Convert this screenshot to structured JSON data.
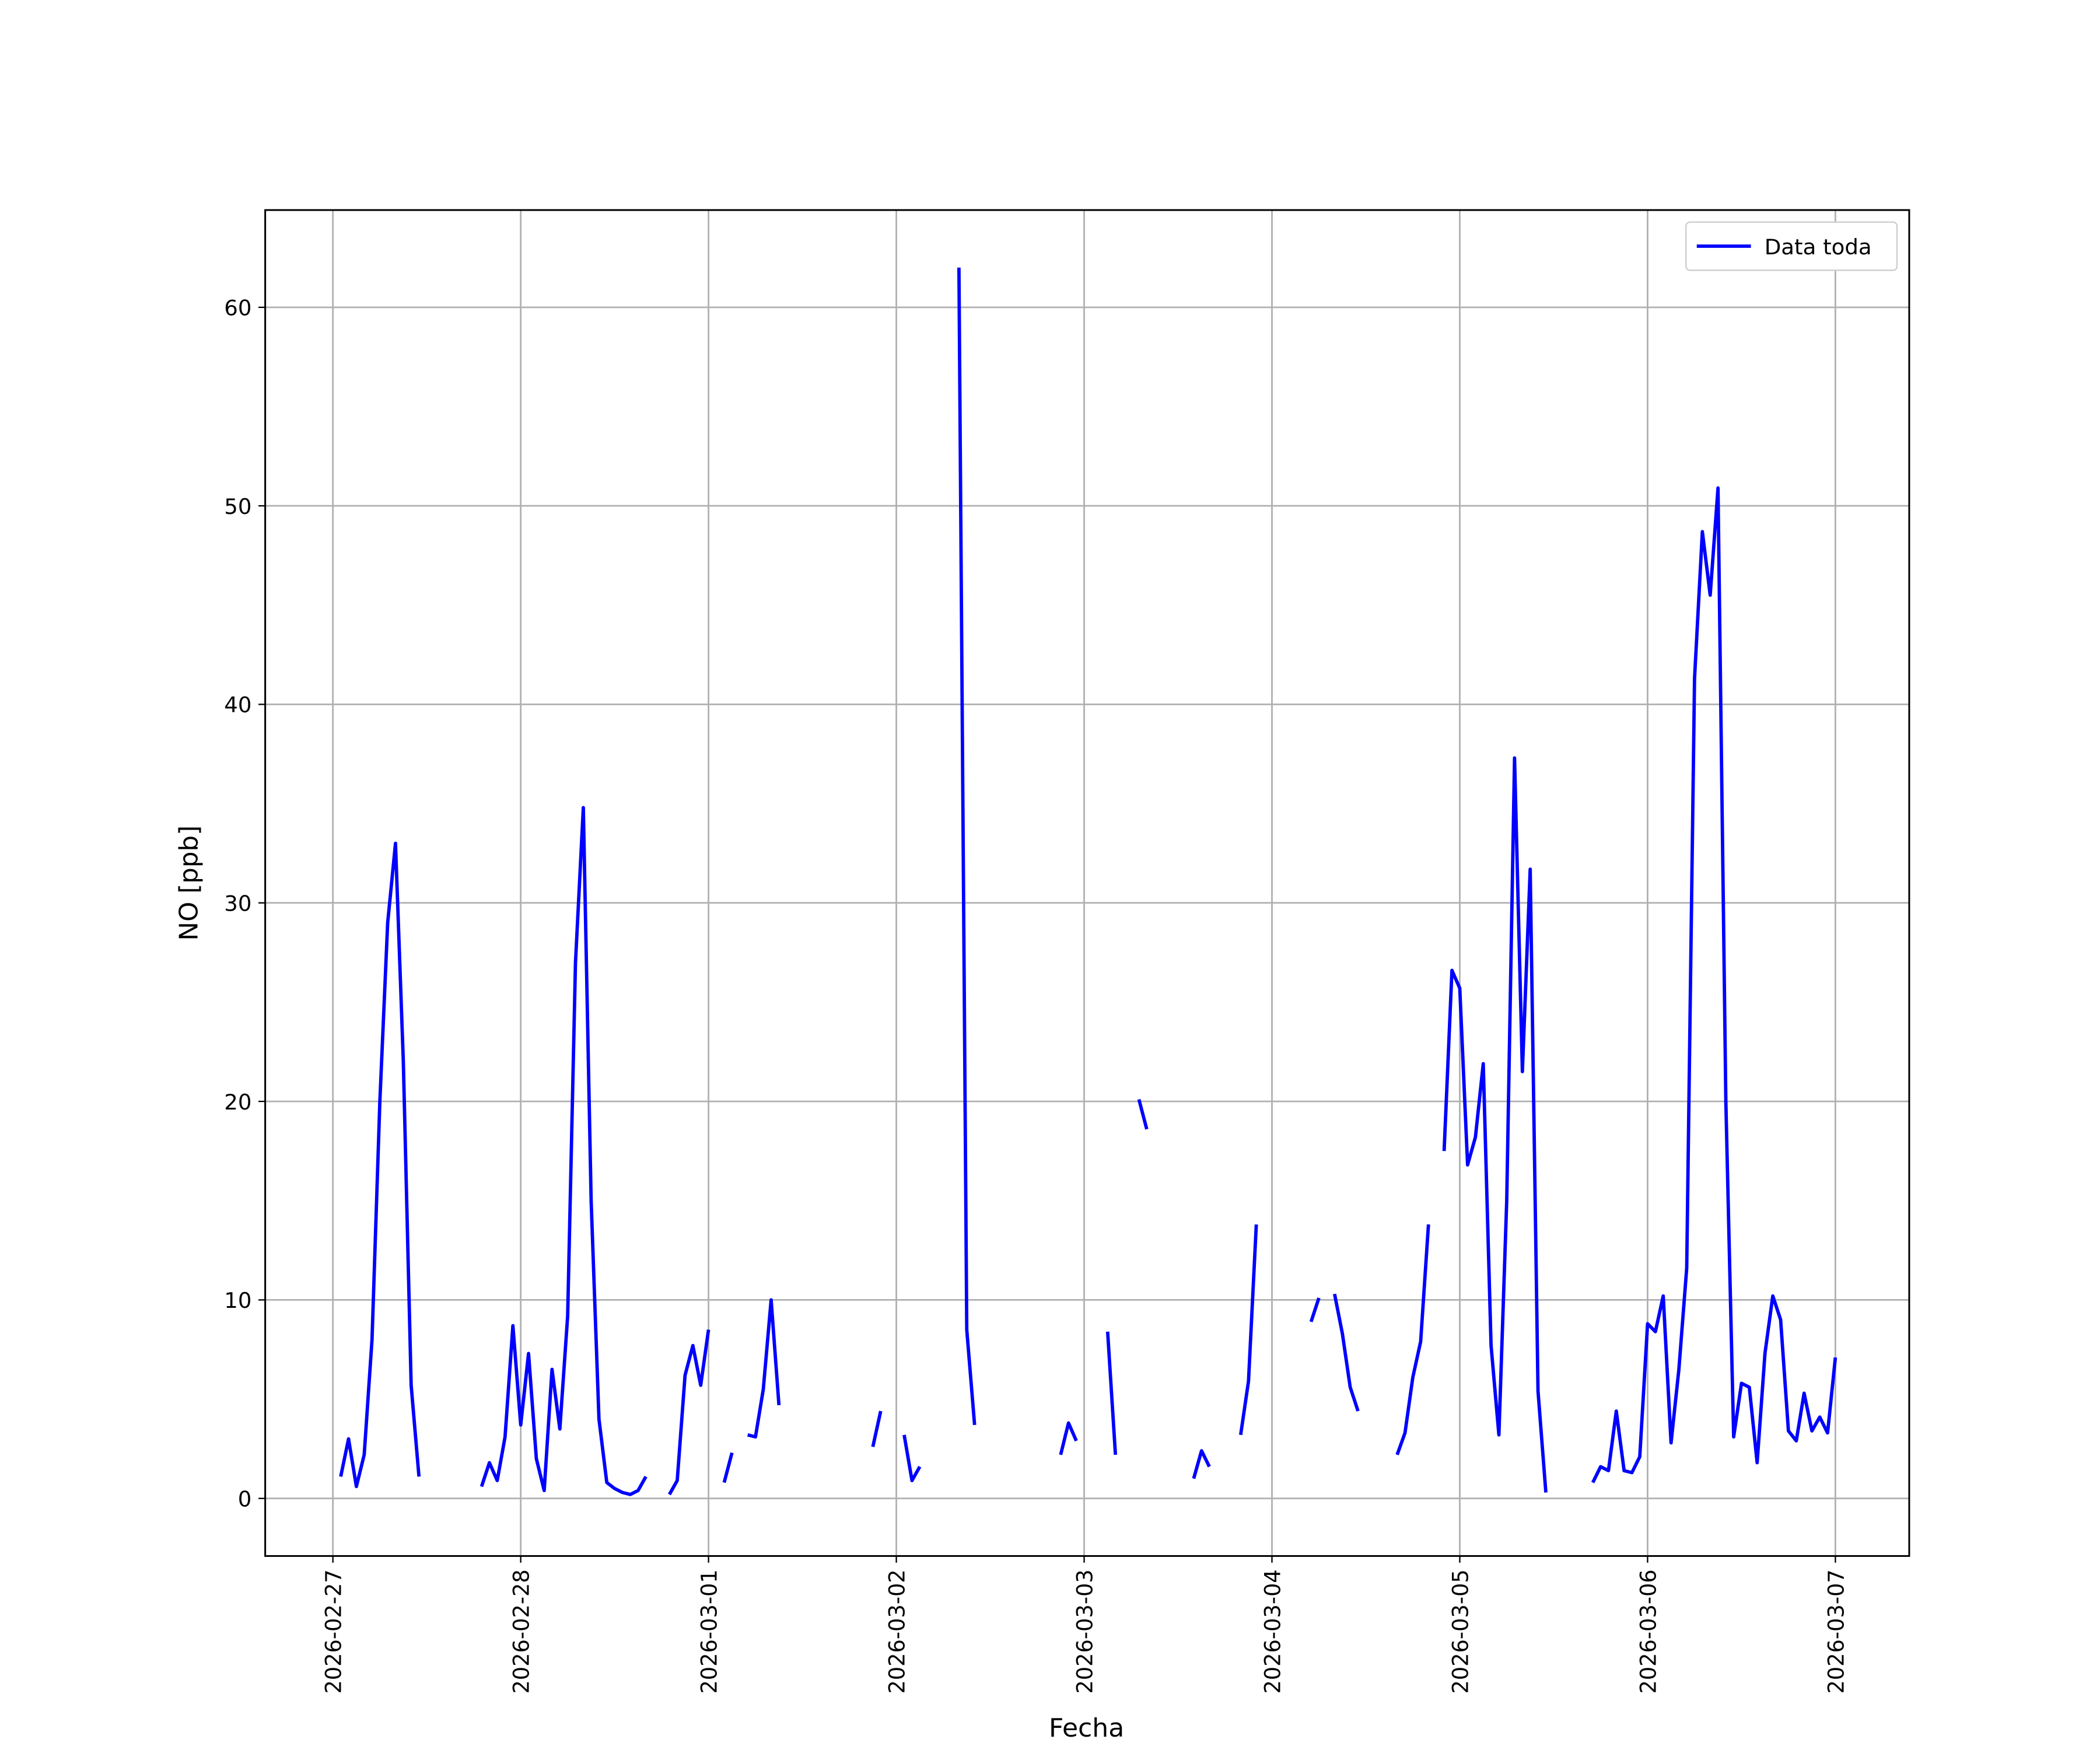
{
  "chart_data": {
    "type": "line",
    "xlabel": "Fecha",
    "ylabel": "NO [ppb]",
    "grid": true,
    "legend": "upper right",
    "xlim": [
      "2026-02-26T15:21",
      "2026-03-07T09:26"
    ],
    "xticks": [
      "2026-02-27",
      "2026-02-28",
      "2026-03-01",
      "2026-03-02",
      "2026-03-03",
      "2026-03-04",
      "2026-03-05",
      "2026-03-06",
      "2026-03-07"
    ],
    "ylim": [
      -2.9,
      64.9
    ],
    "yticks": [
      0,
      10,
      20,
      30,
      40,
      50,
      60
    ],
    "series": [
      {
        "name": "Data toda",
        "color": "#0000ff",
        "x": [
          "2026-02-27T01:00",
          "2026-02-27T02:00",
          "2026-02-27T03:00",
          "2026-02-27T04:00",
          "2026-02-27T05:00",
          "2026-02-27T06:00",
          "2026-02-27T07:00",
          "2026-02-27T08:00",
          "2026-02-27T09:00",
          "2026-02-27T10:00",
          "2026-02-27T11:00",
          "2026-02-27T12:00",
          "2026-02-27T19:00",
          "2026-02-27T20:00",
          "2026-02-27T21:00",
          "2026-02-27T22:00",
          "2026-02-27T23:00",
          "2026-02-28T00:00",
          "2026-02-28T01:00",
          "2026-02-28T02:00",
          "2026-02-28T03:00",
          "2026-02-28T04:00",
          "2026-02-28T05:00",
          "2026-02-28T06:00",
          "2026-02-28T07:00",
          "2026-02-28T08:00",
          "2026-02-28T09:00",
          "2026-02-28T10:00",
          "2026-02-28T11:00",
          "2026-02-28T12:00",
          "2026-02-28T13:00",
          "2026-02-28T14:00",
          "2026-02-28T15:00",
          "2026-02-28T16:00",
          "2026-02-28T17:00",
          "2026-02-28T19:00",
          "2026-02-28T20:00",
          "2026-02-28T21:00",
          "2026-02-28T22:00",
          "2026-02-28T23:00",
          "2026-03-01T00:00",
          "2026-03-01T01:00",
          "2026-03-01T02:00",
          "2026-03-01T03:00",
          "2026-03-01T04:00",
          "2026-03-01T05:00",
          "2026-03-01T06:00",
          "2026-03-01T07:00",
          "2026-03-01T08:00",
          "2026-03-01T09:00",
          "2026-03-01T10:00",
          "2026-03-01T21:00",
          "2026-03-01T22:00",
          "2026-03-01T23:00",
          "2026-03-02T01:00",
          "2026-03-02T02:00",
          "2026-03-02T03:00",
          "2026-03-02T04:00",
          "2026-03-02T08:00",
          "2026-03-02T09:00",
          "2026-03-02T10:00",
          "2026-03-02T11:00",
          "2026-03-02T21:00",
          "2026-03-02T22:00",
          "2026-03-02T23:00",
          "2026-03-03T00:00",
          "2026-03-03T03:00",
          "2026-03-03T04:00",
          "2026-03-03T05:00",
          "2026-03-03T07:00",
          "2026-03-03T08:00",
          "2026-03-03T09:00",
          "2026-03-03T14:00",
          "2026-03-03T15:00",
          "2026-03-03T16:00",
          "2026-03-03T17:00",
          "2026-03-03T20:00",
          "2026-03-03T21:00",
          "2026-03-03T22:00",
          "2026-03-03T23:00",
          "2026-03-04T05:00",
          "2026-03-04T06:00",
          "2026-03-04T07:00",
          "2026-03-04T08:00",
          "2026-03-04T09:00",
          "2026-03-04T10:00",
          "2026-03-04T11:00",
          "2026-03-04T12:00",
          "2026-03-04T16:00",
          "2026-03-04T17:00",
          "2026-03-04T18:00",
          "2026-03-04T19:00",
          "2026-03-04T20:00",
          "2026-03-04T21:00",
          "2026-03-04T22:00",
          "2026-03-04T23:00",
          "2026-03-05T00:00",
          "2026-03-05T01:00",
          "2026-03-05T02:00",
          "2026-03-05T03:00",
          "2026-03-05T04:00",
          "2026-03-05T05:00",
          "2026-03-05T06:00",
          "2026-03-05T07:00",
          "2026-03-05T08:00",
          "2026-03-05T09:00",
          "2026-03-05T10:00",
          "2026-03-05T11:00",
          "2026-03-05T12:00",
          "2026-03-05T17:00",
          "2026-03-05T18:00",
          "2026-03-05T19:00",
          "2026-03-05T20:00",
          "2026-03-05T21:00",
          "2026-03-05T22:00",
          "2026-03-05T23:00",
          "2026-03-06T00:00",
          "2026-03-06T01:00",
          "2026-03-06T02:00",
          "2026-03-06T03:00",
          "2026-03-06T04:00",
          "2026-03-06T05:00",
          "2026-03-06T06:00",
          "2026-03-06T07:00",
          "2026-03-06T08:00",
          "2026-03-06T09:00",
          "2026-03-06T10:00",
          "2026-03-06T11:00",
          "2026-03-06T12:00",
          "2026-03-06T13:00",
          "2026-03-06T14:00",
          "2026-03-06T15:00",
          "2026-03-06T16:00",
          "2026-03-06T17:00",
          "2026-03-06T18:00",
          "2026-03-06T19:00",
          "2026-03-06T20:00",
          "2026-03-06T21:00",
          "2026-03-06T22:00",
          "2026-03-06T23:00",
          "2026-03-07T00:00"
        ],
        "values": [
          1.1,
          3.0,
          0.6,
          2.2,
          8,
          20,
          29,
          33,
          22,
          5.7,
          1.1,
          null,
          0.6,
          1.8,
          0.9,
          3.1,
          8.7,
          3.7,
          7.3,
          2.0,
          0.4,
          6.5,
          3.5,
          9.2,
          27,
          34.8,
          15,
          4.0,
          0.8,
          0.5,
          0.3,
          0.2,
          0.4,
          1.1,
          null,
          0.2,
          0.9,
          6.2,
          7.7,
          5.7,
          8.5,
          null,
          0.8,
          2.3,
          null,
          3.2,
          3.1,
          5.5,
          10.0,
          4.7,
          null,
          2.6,
          4.4,
          null,
          3.2,
          0.9,
          1.6,
          null,
          62,
          8.5,
          3.7,
          null,
          2.2,
          3.8,
          2.9,
          null,
          8.4,
          2.2,
          null,
          20.1,
          18.6,
          null,
          1.0,
          2.4,
          1.6,
          null,
          3.2,
          5.9,
          13.8,
          null,
          8.9,
          10.1,
          null,
          10.3,
          8.3,
          5.6,
          4.4,
          null,
          2.2,
          3.3,
          6.1,
          7.9,
          13.8,
          null,
          17.5,
          26.6,
          25.7,
          16.8,
          18.2,
          21.9,
          7.7,
          3.2,
          15,
          37.3,
          21.5,
          31.7,
          5.4,
          0.3,
          null,
          0.8,
          1.6,
          1.4,
          4.4,
          1.4,
          1.3,
          2.1,
          8.8,
          8.4,
          10.2,
          2.8,
          6.5,
          11.6,
          41.3,
          48.7,
          45.5,
          50.9,
          20,
          3.1,
          5.8,
          5.6,
          1.8,
          7.3,
          10.2,
          9.0,
          3.4,
          2.9,
          5.3,
          3.4,
          4.1,
          3.3,
          7.1
        ]
      }
    ]
  }
}
